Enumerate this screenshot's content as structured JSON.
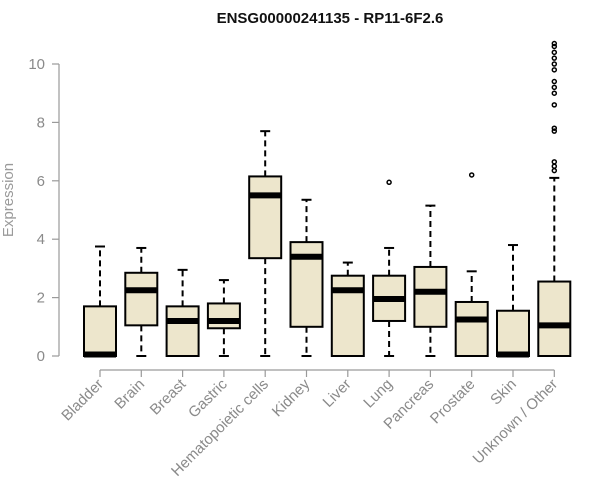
{
  "chart_data": {
    "type": "boxplot",
    "title": "ENSG00000241135 - RP11-6F2.6",
    "xlabel": "",
    "ylabel": "Expression",
    "ylim": [
      0,
      10.5
    ],
    "yticks": [
      0,
      2,
      4,
      6,
      8,
      10
    ],
    "grid": false,
    "colors": {
      "box_fill": "#ede6cc",
      "box_stroke": "#000000",
      "axis": "#9a9a9a"
    },
    "categories": [
      "Bladder",
      "Brain",
      "Breast",
      "Gastric",
      "Hematopoietic cells",
      "Kidney",
      "Liver",
      "Lung",
      "Pancreas",
      "Prostate",
      "Skin",
      "Unknown / Other"
    ],
    "boxes": [
      {
        "label": "Bladder",
        "whisker_low": 0,
        "q1": 0,
        "median": 0.05,
        "q3": 1.7,
        "whisker_high": 3.75,
        "outliers": []
      },
      {
        "label": "Brain",
        "whisker_low": 0,
        "q1": 1.05,
        "median": 2.25,
        "q3": 2.85,
        "whisker_high": 3.7,
        "outliers": []
      },
      {
        "label": "Breast",
        "whisker_low": 0,
        "q1": 0,
        "median": 1.2,
        "q3": 1.7,
        "whisker_high": 2.95,
        "outliers": []
      },
      {
        "label": "Gastric",
        "whisker_low": 0,
        "q1": 0.95,
        "median": 1.2,
        "q3": 1.8,
        "whisker_high": 2.6,
        "outliers": []
      },
      {
        "label": "Hematopoietic cells",
        "whisker_low": 0,
        "q1": 3.35,
        "median": 5.5,
        "q3": 6.15,
        "whisker_high": 7.7,
        "outliers": []
      },
      {
        "label": "Kidney",
        "whisker_low": 0,
        "q1": 1.0,
        "median": 3.4,
        "q3": 3.9,
        "whisker_high": 5.35,
        "outliers": []
      },
      {
        "label": "Liver",
        "whisker_low": 0,
        "q1": 0,
        "median": 2.25,
        "q3": 2.75,
        "whisker_high": 3.2,
        "outliers": []
      },
      {
        "label": "Lung",
        "whisker_low": 0,
        "q1": 1.2,
        "median": 1.95,
        "q3": 2.75,
        "whisker_high": 3.7,
        "outliers": [
          5.95
        ]
      },
      {
        "label": "Pancreas",
        "whisker_low": 0,
        "q1": 1.0,
        "median": 2.2,
        "q3": 3.05,
        "whisker_high": 5.15,
        "outliers": []
      },
      {
        "label": "Prostate",
        "whisker_low": 0,
        "q1": 0,
        "median": 1.25,
        "q3": 1.85,
        "whisker_high": 2.9,
        "outliers": [
          6.2
        ]
      },
      {
        "label": "Skin",
        "whisker_low": 0,
        "q1": 0,
        "median": 0.05,
        "q3": 1.55,
        "whisker_high": 3.8,
        "outliers": []
      },
      {
        "label": "Unknown / Other",
        "whisker_low": 0,
        "q1": 0,
        "median": 1.05,
        "q3": 2.55,
        "whisker_high": 6.1,
        "outliers": [
          6.35,
          6.5,
          6.65,
          7.7,
          7.8,
          8.6,
          9.0,
          9.2,
          9.4,
          9.8,
          10.0,
          10.2,
          10.4,
          10.6,
          10.7
        ]
      }
    ]
  }
}
